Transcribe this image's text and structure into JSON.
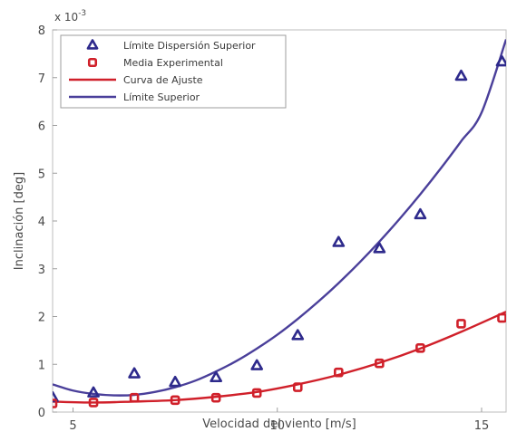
{
  "chart_data": {
    "type": "scatter",
    "title": "",
    "xlabel": "Velocidad del viento [m/s]",
    "ylabel": "Inclinación [deg]",
    "y_multiplier_label": "x 10",
    "y_multiplier_exponent": "-3",
    "xlim": [
      4.5,
      15.6
    ],
    "ylim": [
      0,
      8
    ],
    "x_ticks": [
      5,
      10,
      15
    ],
    "y_ticks": [
      0,
      1,
      2,
      3,
      4,
      5,
      6,
      7,
      8
    ],
    "grid": false,
    "legend_position": "top-left",
    "series": [
      {
        "name": "Límite Dispersión Superior",
        "kind": "points",
        "marker": "triangle",
        "color": "#2e2a8c",
        "x": [
          4.5,
          5.5,
          6.5,
          7.5,
          8.5,
          9.5,
          10.5,
          11.5,
          12.5,
          13.5,
          14.5,
          15.5
        ],
        "y": [
          0.3,
          0.4,
          0.8,
          0.62,
          0.72,
          0.97,
          1.6,
          3.55,
          3.42,
          4.13,
          7.03,
          7.33
        ]
      },
      {
        "name": "Media Experimental",
        "kind": "points",
        "marker": "square",
        "color": "#d0202a",
        "x": [
          4.5,
          5.5,
          6.5,
          7.5,
          8.5,
          9.5,
          10.5,
          11.5,
          12.5,
          13.5,
          14.5,
          15.5
        ],
        "y": [
          0.18,
          0.2,
          0.3,
          0.25,
          0.3,
          0.4,
          0.52,
          0.83,
          1.02,
          1.34,
          1.85,
          1.97
        ]
      },
      {
        "name": "Curva de Ajuste",
        "kind": "line",
        "color": "#d0202a",
        "x": [
          4.5,
          5.5,
          6.5,
          7.5,
          8.5,
          9.5,
          10.5,
          11.5,
          12.5,
          13.5,
          14.5,
          15.6
        ],
        "y": [
          0.22,
          0.2,
          0.22,
          0.25,
          0.32,
          0.42,
          0.58,
          0.78,
          1.03,
          1.33,
          1.68,
          2.1
        ]
      },
      {
        "name": "Límite Superior",
        "kind": "line",
        "color": "#4a3f9a",
        "x": [
          4.5,
          5.0,
          5.5,
          6.0,
          6.5,
          7.0,
          7.5,
          8.0,
          8.5,
          9.0,
          9.5,
          10.0,
          10.5,
          11.0,
          11.5,
          12.0,
          12.5,
          13.0,
          13.5,
          14.0,
          14.5,
          15.0,
          15.6
        ],
        "y": [
          0.58,
          0.45,
          0.38,
          0.35,
          0.36,
          0.42,
          0.52,
          0.66,
          0.85,
          1.07,
          1.33,
          1.62,
          1.95,
          2.31,
          2.7,
          3.12,
          3.57,
          4.05,
          4.56,
          5.1,
          5.67,
          6.27,
          7.8
        ]
      }
    ]
  }
}
